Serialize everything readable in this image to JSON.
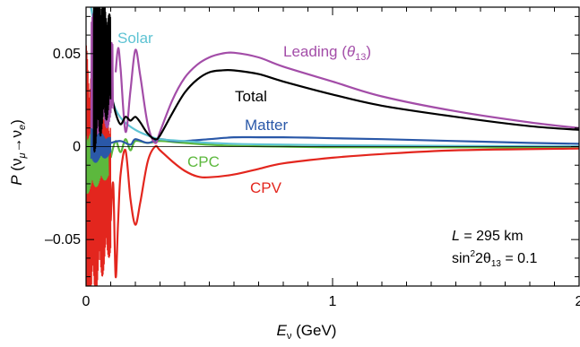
{
  "chart_data": {
    "type": "line",
    "xlabel": "E_ν (GeV)",
    "ylabel": "P (ν_μ → ν_e)",
    "xlim": [
      0,
      2
    ],
    "ylim": [
      -0.075,
      0.075
    ],
    "x_ticks": [
      "0",
      "1",
      "2"
    ],
    "y_ticks": [
      "0.05",
      "0",
      "–0.05"
    ],
    "grid": false,
    "annotation_lines": [
      {
        "var": "L",
        "text": " = 295 km"
      },
      {
        "pre": "sin",
        "sup": "2",
        "mid": "2θ",
        "sub": "13",
        "post": " = 0.1"
      }
    ],
    "series": [
      {
        "name": "Leading (θ13)",
        "color": "#a34da8",
        "label": {
          "main": "Leading (",
          "theta": "θ",
          "sub": "13",
          "close": ")"
        },
        "points": [
          [
            0.12,
            0.04
          ],
          [
            0.13,
            0.053
          ],
          [
            0.14,
            0.042
          ],
          [
            0.16,
            0.008
          ],
          [
            0.18,
            0.03
          ],
          [
            0.2,
            0.052
          ],
          [
            0.22,
            0.038
          ],
          [
            0.25,
            0.012
          ],
          [
            0.28,
            0.002
          ],
          [
            0.3,
            0.008
          ],
          [
            0.35,
            0.025
          ],
          [
            0.4,
            0.037
          ],
          [
            0.45,
            0.044
          ],
          [
            0.5,
            0.048
          ],
          [
            0.55,
            0.05
          ],
          [
            0.6,
            0.0505
          ],
          [
            0.7,
            0.048
          ],
          [
            0.8,
            0.043
          ],
          [
            1.0,
            0.035
          ],
          [
            1.2,
            0.027
          ],
          [
            1.5,
            0.019
          ],
          [
            1.8,
            0.013
          ],
          [
            2.0,
            0.01
          ]
        ]
      },
      {
        "name": "Total",
        "color": "#000000",
        "label": {
          "main": "Total"
        },
        "points": [
          [
            0.1,
            0.03
          ],
          [
            0.12,
            0.018
          ],
          [
            0.14,
            0.012
          ],
          [
            0.16,
            0.016
          ],
          [
            0.18,
            0.014
          ],
          [
            0.2,
            0.016
          ],
          [
            0.22,
            0.013
          ],
          [
            0.25,
            0.007
          ],
          [
            0.28,
            0.004
          ],
          [
            0.3,
            0.006
          ],
          [
            0.35,
            0.018
          ],
          [
            0.4,
            0.029
          ],
          [
            0.45,
            0.036
          ],
          [
            0.5,
            0.04
          ],
          [
            0.55,
            0.041
          ],
          [
            0.6,
            0.041
          ],
          [
            0.7,
            0.039
          ],
          [
            0.8,
            0.035
          ],
          [
            1.0,
            0.028
          ],
          [
            1.2,
            0.022
          ],
          [
            1.5,
            0.016
          ],
          [
            1.8,
            0.011
          ],
          [
            2.0,
            0.009
          ]
        ]
      },
      {
        "name": "Solar",
        "color": "#5ec3d3",
        "label": {
          "main": "Solar"
        },
        "points": [
          [
            0.02,
            0.075
          ],
          [
            0.04,
            0.06
          ],
          [
            0.06,
            0.045
          ],
          [
            0.08,
            0.035
          ],
          [
            0.1,
            0.028
          ],
          [
            0.12,
            0.02
          ],
          [
            0.15,
            0.014
          ],
          [
            0.2,
            0.009
          ],
          [
            0.25,
            0.006
          ],
          [
            0.3,
            0.004
          ],
          [
            0.4,
            0.003
          ],
          [
            0.5,
            0.002
          ],
          [
            0.7,
            0.0012
          ],
          [
            1.0,
            0.0007
          ],
          [
            1.5,
            0.0004
          ],
          [
            2.0,
            0.0002
          ]
        ]
      },
      {
        "name": "Matter",
        "color": "#2a58a8",
        "label": {
          "main": "Matter"
        },
        "points": [
          [
            0.1,
            0.002
          ],
          [
            0.14,
            0.003
          ],
          [
            0.18,
            0.001
          ],
          [
            0.2,
            0.004
          ],
          [
            0.25,
            0.002
          ],
          [
            0.3,
            0.004
          ],
          [
            0.35,
            0.003
          ],
          [
            0.4,
            0.003
          ],
          [
            0.5,
            0.004
          ],
          [
            0.6,
            0.005
          ],
          [
            0.7,
            0.005
          ],
          [
            0.8,
            0.005
          ],
          [
            0.9,
            0.0048
          ],
          [
            1.0,
            0.0045
          ],
          [
            1.2,
            0.004
          ],
          [
            1.5,
            0.003
          ],
          [
            1.8,
            0.002
          ],
          [
            2.0,
            0.0015
          ]
        ]
      },
      {
        "name": "CPC",
        "color": "#5cb83d",
        "label": {
          "main": "CPC"
        },
        "points": [
          [
            0.1,
            -0.006
          ],
          [
            0.12,
            0.003
          ],
          [
            0.14,
            -0.003
          ],
          [
            0.16,
            0.004
          ],
          [
            0.18,
            -0.002
          ],
          [
            0.2,
            0.003
          ],
          [
            0.25,
            0.002
          ],
          [
            0.3,
            0.003
          ],
          [
            0.35,
            0.0025
          ],
          [
            0.4,
            0.002
          ],
          [
            0.5,
            0.001
          ],
          [
            0.6,
            0.0004
          ],
          [
            0.8,
            0.0
          ],
          [
            1.0,
            -0.0003
          ],
          [
            1.5,
            -0.0004
          ],
          [
            2.0,
            -0.0004
          ]
        ]
      },
      {
        "name": "CPV",
        "color": "#e3261e",
        "label": {
          "main": "CPV"
        },
        "points": [
          [
            0.1,
            -0.04
          ],
          [
            0.11,
            -0.02
          ],
          [
            0.12,
            -0.07
          ],
          [
            0.13,
            -0.04
          ],
          [
            0.14,
            -0.015
          ],
          [
            0.16,
            -0.002
          ],
          [
            0.18,
            -0.028
          ],
          [
            0.2,
            -0.042
          ],
          [
            0.22,
            -0.03
          ],
          [
            0.25,
            -0.008
          ],
          [
            0.28,
            0.0
          ],
          [
            0.3,
            -0.002
          ],
          [
            0.35,
            -0.008
          ],
          [
            0.4,
            -0.013
          ],
          [
            0.45,
            -0.016
          ],
          [
            0.5,
            -0.0165
          ],
          [
            0.6,
            -0.015
          ],
          [
            0.7,
            -0.012
          ],
          [
            0.8,
            -0.009
          ],
          [
            1.0,
            -0.006
          ],
          [
            1.2,
            -0.004
          ],
          [
            1.5,
            -0.002
          ],
          [
            2.0,
            -0.001
          ]
        ]
      }
    ]
  }
}
